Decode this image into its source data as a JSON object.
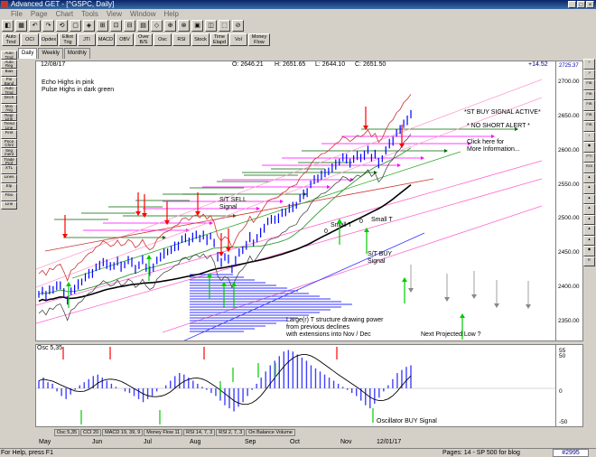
{
  "window": {
    "title": "Advanced GET - [^GSPC, Daily]",
    "controls": [
      "_",
      "□",
      "×"
    ]
  },
  "menu": [
    "File",
    "Page",
    "Chart",
    "Tools",
    "View",
    "Window",
    "Help"
  ],
  "toolbar1": [
    "◧",
    "▦",
    "↶",
    "↷",
    "⟲",
    "▢",
    "◈",
    "⊞",
    "⊡",
    "⊟",
    "▤",
    "◇",
    "⊕",
    "⊗",
    "▣",
    "◫",
    "⬚",
    "⊘"
  ],
  "toolbar2": [
    "Auto\nTrnd",
    "OCI",
    "Opdex",
    "Elliot\nTrig",
    "JTI",
    "MACD",
    "OBV",
    "Over\nB/S",
    "Osc",
    "RSI",
    "Stock",
    "Time\nElapd",
    "Vol",
    "Money\nFlow"
  ],
  "chart_tabs": [
    "Daily",
    "Weekly",
    "Monthly"
  ],
  "left_tools": [
    "Auto\nTrnd",
    "Auto\nReg",
    "Bias",
    "Pol\nBand",
    "Auto\nTrnd",
    "Dnch",
    "Mov\nAvg",
    "Regr\nLine",
    "Trend\nLine",
    "First",
    "Price\nChnl",
    "Seg\nment",
    "Trade\nProf",
    "XTL",
    "Lines",
    "Elp",
    "Fibo",
    "Line"
  ],
  "right_tools": [
    "+",
    "↗",
    "FIB",
    "FIB",
    "FIB",
    "FIB",
    "FIB",
    "•",
    "◆",
    "PTI",
    "ROI",
    "▲",
    "▲",
    "▲",
    "▲",
    "▲",
    "▲",
    "▲",
    "◆",
    "R"
  ],
  "header": {
    "date": "12/08/17",
    "open": "O: 2646.21",
    "high": "H: 2651.65",
    "low": "L: 2644.10",
    "close": "C: 2651.50",
    "change": "+14.52"
  },
  "annotations": {
    "echo": "Echo Highs in pink",
    "pulse": "Pulse Highs in dark green",
    "st_buy": "*ST BUY SIGNAL ACTIVE*",
    "no_short": "* NO SHORT ALERT *",
    "click_here": "Click here for",
    "more_info": "More Information...",
    "st_sell": "S/T SELL",
    "st_sell_2": "Signal",
    "small_t1": "Small T",
    "small_t2": "Small T",
    "st_buy2": "S/T BUY",
    "st_buy2_2": "Signal",
    "larger_t": "Large(r) T structure drawing power",
    "larger_t_2": "from previous declines",
    "larger_t_3": "with extensions into Nov / Dec",
    "next_low": "Next Projected Low ?",
    "osc_buy": "Oscillator BUY Signal",
    "osc_title": "Osc 5,35",
    "zero_a": "0",
    "zero_b": "0"
  },
  "price_axis": {
    "ticks": [
      "2700.00",
      "2650.00",
      "2600.00",
      "2550.00",
      "2500.00",
      "2450.00",
      "2400.00",
      "2350.00"
    ],
    "last": "2725.37"
  },
  "osc_axis": {
    "ticks": [
      "55",
      "50",
      "0",
      "-50"
    ]
  },
  "indicator_tabs": [
    "Osc 5,35",
    "CCI 20",
    "MACD 19, 39, 9",
    "Money Flow 11",
    "RSI 14, 7, 3",
    "RSI 2, 7, 3",
    "On Balance Volume"
  ],
  "months": [
    "May",
    "Jun",
    "Jul",
    "Aug",
    "Sep",
    "Oct",
    "Nov",
    "12/01/17"
  ],
  "status": {
    "left": "For Help, press F1",
    "right": "Pages: 14 - SP 500 for blog",
    "badge": "#2995"
  },
  "colors": {
    "echo": "#ff00ff",
    "pulse": "#006400",
    "up_arrow": "#00cc00",
    "down_arrow": "#ff0000",
    "bars": "#0000ff",
    "osc": "#4040ff"
  },
  "chart_data": {
    "type": "bar",
    "title": "",
    "ylim": [
      2320,
      2730
    ],
    "close_series": [
      2390,
      2395,
      2388,
      2398,
      2396,
      2402,
      2404,
      2393,
      2380,
      2395,
      2398,
      2405,
      2408,
      2415,
      2420,
      2422,
      2429,
      2432,
      2438,
      2435,
      2430,
      2432,
      2439,
      2431,
      2433,
      2440,
      2437,
      2428,
      2432,
      2440,
      2430,
      2425,
      2428,
      2440,
      2445,
      2450,
      2452,
      2455,
      2460,
      2462,
      2470,
      2472,
      2468,
      2474,
      2476,
      2472,
      2477,
      2470,
      2475,
      2465,
      2445,
      2438,
      2444,
      2441,
      2428,
      2440,
      2450,
      2455,
      2462,
      2474,
      2465,
      2472,
      2480,
      2488,
      2496,
      2499,
      2500,
      2502,
      2508,
      2510,
      2516,
      2518,
      2520,
      2530,
      2536,
      2540,
      2550,
      2557,
      2560,
      2565,
      2566,
      2570,
      2575,
      2580,
      2583,
      2590,
      2588,
      2583,
      2587,
      2592,
      2590,
      2594,
      2600,
      2590,
      2595,
      2582,
      2588,
      2600,
      2610,
      2615,
      2625,
      2630,
      2640,
      2645,
      2652
    ],
    "oscillator": [
      10,
      14,
      8,
      6,
      -4,
      -10,
      -14,
      -8,
      -2,
      4,
      8,
      12,
      16,
      18,
      14,
      10,
      6,
      2,
      0,
      -4,
      -6,
      -10,
      -14,
      -18,
      -14,
      -10,
      -4,
      0,
      4,
      10,
      16,
      20,
      18,
      14,
      10,
      6,
      2,
      -2,
      -6,
      -10,
      -16,
      -22,
      -26,
      -30,
      -24,
      -18,
      -10,
      -2,
      6,
      14,
      22,
      30,
      36,
      42,
      48,
      50,
      48,
      44,
      40,
      36,
      30,
      26,
      22,
      18,
      14,
      10,
      6,
      2,
      -2,
      -6,
      -10,
      -16,
      -22,
      -26,
      -20,
      -12,
      -4,
      4,
      12,
      20,
      24,
      28,
      30
    ]
  }
}
